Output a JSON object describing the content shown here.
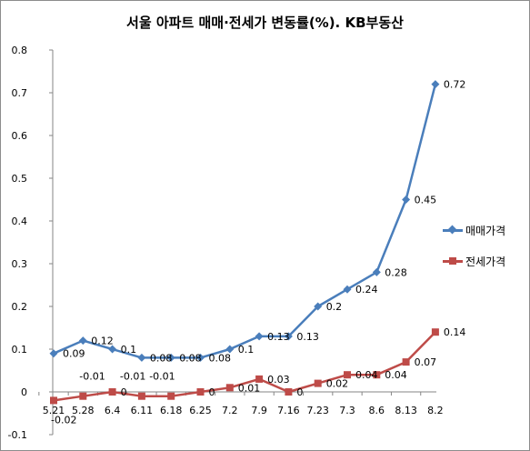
{
  "chart_data": {
    "type": "line",
    "title": "서울 아파트 매매·전세가 변동률(%). KB부동산",
    "categories": [
      "5.21",
      "5.28",
      "6.4",
      "6.11",
      "6.18",
      "6.25",
      "7.2",
      "7.9",
      "7.16",
      "7.23",
      "7.3",
      "8.6",
      "8.13",
      "8.2"
    ],
    "ylim": [
      -0.1,
      0.8
    ],
    "yticks": [
      "-0.1",
      "0",
      "0.1",
      "0.2",
      "0.3",
      "0.4",
      "0.5",
      "0.6",
      "0.7",
      "0.8"
    ],
    "grid": false,
    "legend_position": "right",
    "series": [
      {
        "name": "매매가격",
        "color": "#4a7ebb",
        "marker": "diamond",
        "values": [
          0.09,
          0.12,
          0.1,
          0.08,
          0.08,
          0.08,
          0.1,
          0.13,
          0.13,
          0.2,
          0.24,
          0.28,
          0.45,
          0.72
        ],
        "labels": [
          "0.09",
          "0.12",
          "0.1",
          "0.08",
          "0.08",
          "0.08",
          "0.1",
          "0.13",
          "0.13",
          "0.2",
          "0.24",
          "0.28",
          "0.45",
          "0.72"
        ]
      },
      {
        "name": "전세가격",
        "color": "#be4b48",
        "marker": "square",
        "values": [
          -0.02,
          -0.01,
          0,
          -0.01,
          -0.01,
          0,
          0.01,
          0.03,
          0,
          0.02,
          0.04,
          0.04,
          0.07,
          0.14
        ],
        "labels": [
          "-0.02",
          "-0.01",
          "0",
          "-0.01",
          "-0.01",
          "0",
          "0.01",
          "0.03",
          "0",
          "0.02",
          "0.04",
          "0.04",
          "0.07",
          "0.14"
        ]
      }
    ]
  }
}
